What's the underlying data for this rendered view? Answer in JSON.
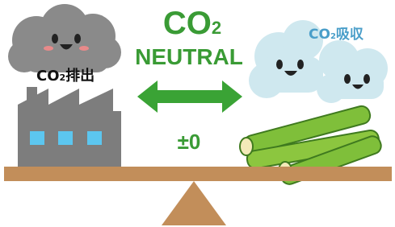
{
  "center": {
    "title": {
      "base": "CO",
      "sub": "2"
    },
    "subtitle": "NEUTRAL",
    "balance": "±0"
  },
  "left": {
    "label": {
      "base": "CO",
      "sub": "2",
      "suffix": "排出"
    }
  },
  "right": {
    "label": {
      "base": "CO",
      "sub": "2",
      "suffix": "吸収"
    }
  }
}
